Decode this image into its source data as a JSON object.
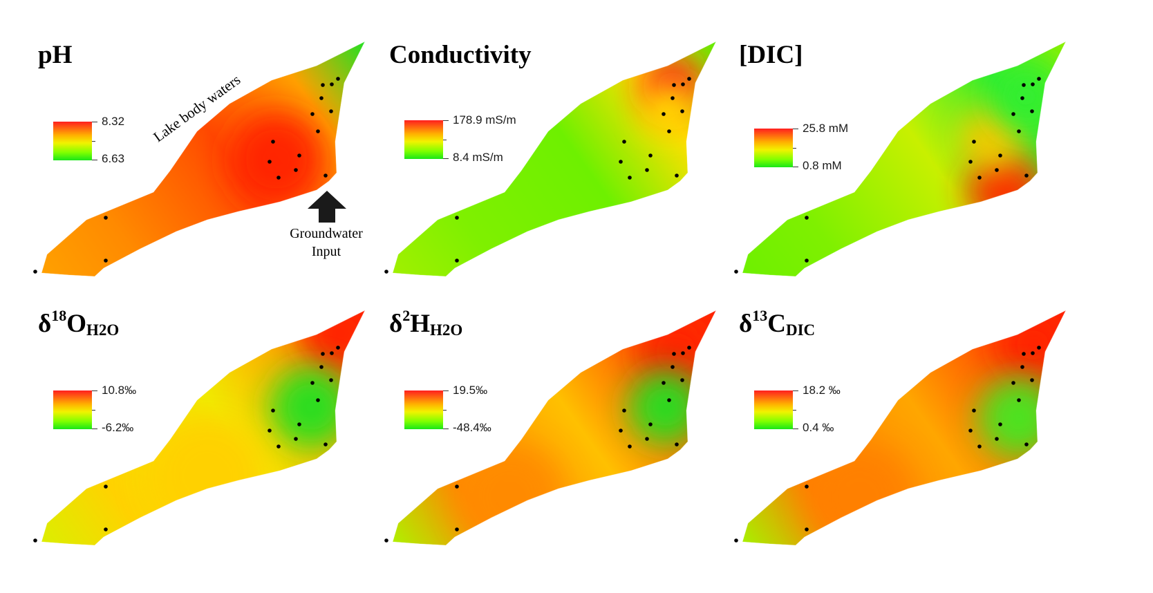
{
  "panels": [
    {
      "id": "ph",
      "title_main": "pH",
      "title_sup": "",
      "title_sub": "",
      "max_label": "8.32",
      "min_label": "6.63",
      "colors": {
        "tip": "#22e022",
        "ne": "#ffa000",
        "center": "#ff4a00",
        "sw": "#ff8a00",
        "tail": "#ffa000",
        "hot": "#ff2000"
      }
    },
    {
      "id": "conductivity",
      "title_main": "Conductivity",
      "title_sup": "",
      "title_sub": "",
      "max_label": "178.9 mS/m",
      "min_label": "8.4 mS/m",
      "colors": {
        "tip": "#5cf000",
        "ne": "#ffe000",
        "center": "#6ef000",
        "sw": "#7ff000",
        "tail": "#a0f000",
        "hot": "#ff1a1a"
      }
    },
    {
      "id": "dic",
      "title_main": "[DIC]",
      "title_sup": "",
      "title_sub": "",
      "max_label": "25.8 mM",
      "min_label": "0.8 mM",
      "colors": {
        "tip": "#90f000",
        "ne": "#30ee30",
        "center": "#c8f000",
        "sw": "#7ff000",
        "tail": "#6ef000",
        "hot": "#ff2a00"
      }
    },
    {
      "id": "d18o",
      "title_main": "δ",
      "title_sup": "18",
      "title_base": "O",
      "title_sub": "H2O",
      "max_label": "10.8‰",
      "min_label": "-6.2‰",
      "colors": {
        "tip": "#ff2000",
        "ne": "#ffa000",
        "center": "#f0ec00",
        "sw": "#ffd200",
        "tail": "#dcee00",
        "hot": "#22e022"
      }
    },
    {
      "id": "d2h",
      "title_main": "δ",
      "title_sup": "2",
      "title_base": "H",
      "title_sub": "H2O",
      "max_label": "19.5‰",
      "min_label": "-48.4‰",
      "colors": {
        "tip": "#ff2000",
        "ne": "#ff5a00",
        "center": "#ffc000",
        "sw": "#ff8a00",
        "tail": "#b0f000",
        "hot": "#22e022"
      }
    },
    {
      "id": "d13c",
      "title_main": "δ",
      "title_sup": "13",
      "title_base": "C",
      "title_sub": "DIC",
      "max_label": "18.2 ‰",
      "min_label": "0.4 ‰",
      "colors": {
        "tip": "#ff2000",
        "ne": "#ff5000",
        "center": "#ffa600",
        "sw": "#ff8000",
        "tail": "#a8f000",
        "hot": "#44e820"
      }
    }
  ],
  "annotations": {
    "lake_label": "Lake body waters",
    "gw_line1": "Groundwater",
    "gw_line2": "Input"
  }
}
